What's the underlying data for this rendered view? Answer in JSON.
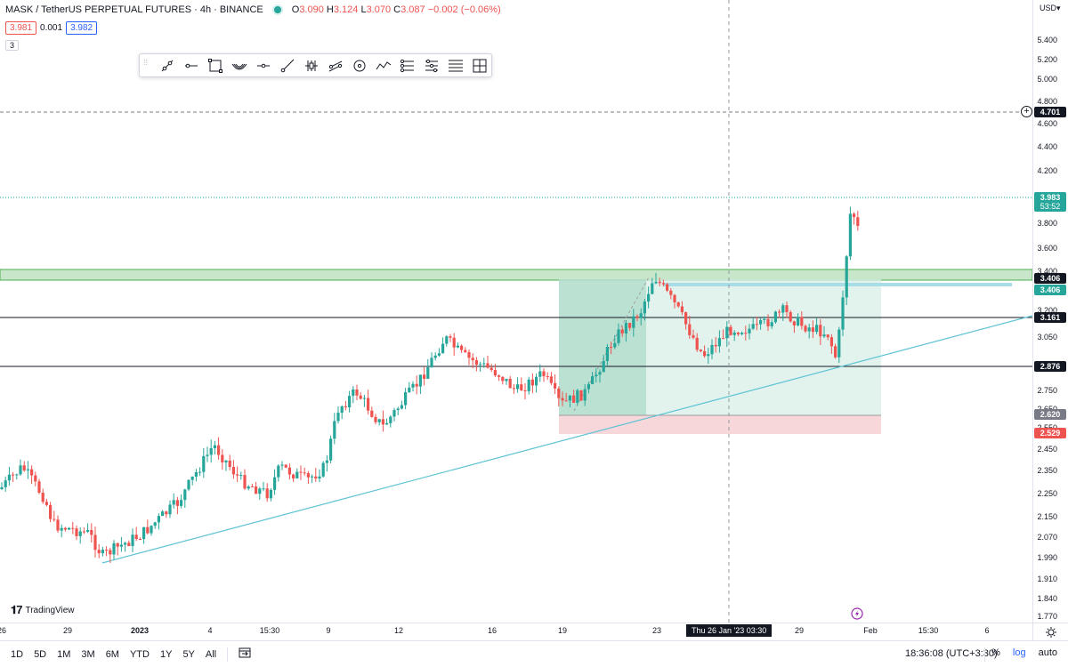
{
  "header": {
    "symbol": "MASK / TetherUS PERPETUAL FUTURES · 4h · BINANCE",
    "ohlc": {
      "o_label": "O",
      "o": "3.090",
      "h_label": "H",
      "h": "3.124",
      "l_label": "L",
      "l": "3.070",
      "c_label": "C",
      "c": "3.087",
      "change": "−0.002 (−0.06%)"
    },
    "sell_price": "3.981",
    "spread": "0.001",
    "buy_price": "3.982",
    "indicator_count": "3"
  },
  "watermark": {
    "text": "TradingView"
  },
  "price_axis": {
    "currency": "USD",
    "ticks": [
      "5.400",
      "5.200",
      "5.000",
      "4.800",
      "4.600",
      "4.400",
      "4.200",
      "3.800",
      "3.600",
      "3.400",
      "3.200",
      "3.050",
      "2.750",
      "2.650",
      "2.550",
      "2.450",
      "2.350",
      "2.250",
      "2.150",
      "2.070",
      "1.990",
      "1.910",
      "1.840",
      "1.770"
    ],
    "labels": {
      "alert": "4.701",
      "current": "3.983",
      "countdown": "53:52",
      "resistance_top": "3.406",
      "range_high": "3.406",
      "level_mid": "3.161",
      "level_low": "2.876",
      "entry": "2.620",
      "stop": "2.529"
    }
  },
  "time_axis": {
    "ticks": [
      "26",
      "29",
      "2023",
      "4",
      "15:30",
      "9",
      "12",
      "16",
      "19",
      "23",
      "29",
      "Feb",
      "15:30",
      "6"
    ],
    "crosshair": "Thu 26 Jan '23   03:30"
  },
  "bottom_bar": {
    "timeframes": [
      "1D",
      "5D",
      "1M",
      "3M",
      "6M",
      "YTD",
      "1Y",
      "5Y",
      "All"
    ],
    "clock": "18:36:08 (UTC+3:30)",
    "percent": "%",
    "log": "log",
    "auto": "auto"
  },
  "colors": {
    "up": "#26a69a",
    "down": "#ef5350",
    "trendline": "#5cc3d4",
    "zone_green": "#c8e6c9",
    "zone_red": "#f8d7da"
  },
  "icons": [
    "trend-line-icon",
    "horizontal-ray-icon",
    "rectangle-icon",
    "fib-fan-icon",
    "horizontal-line-icon",
    "ray-icon",
    "pitchfork-icon",
    "parallel-channel-icon",
    "circle-icon",
    "path-icon",
    "long-position-icon",
    "short-position-icon",
    "fib-retracement-icon",
    "measure-icon",
    "date-range-icon",
    "clock-icon",
    "settings-icon",
    "lightning-icon"
  ]
}
